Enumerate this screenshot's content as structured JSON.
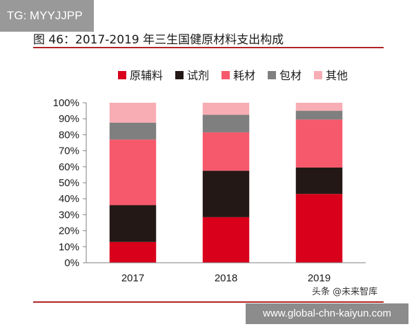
{
  "tag_badge": "TG: MYYJJPP",
  "url_banner": "www.global-chn-kaiyun.com",
  "watermark": "头条 @未来智库",
  "colors": {
    "rule": "#b22222",
    "badge": "#999999",
    "banner": "#8c8c8c"
  },
  "chart_data": {
    "type": "bar",
    "stacked": true,
    "title": "图 46：2017-2019 年三生国健原材料支出构成",
    "categories": [
      "2017",
      "2018",
      "2019"
    ],
    "ylim": [
      0,
      100
    ],
    "yticks": [
      "0%",
      "10%",
      "20%",
      "30%",
      "40%",
      "50%",
      "60%",
      "70%",
      "80%",
      "90%",
      "100%"
    ],
    "legend_position": "top",
    "series": [
      {
        "name": "原辅料",
        "color": "#d9001b",
        "values": [
          13,
          28.5,
          43
        ]
      },
      {
        "name": "试剂",
        "color": "#231815",
        "values": [
          23,
          29,
          16.5
        ]
      },
      {
        "name": "耗材",
        "color": "#f7596c",
        "values": [
          41,
          24,
          30
        ]
      },
      {
        "name": "包材",
        "color": "#7f7f7f",
        "values": [
          10.5,
          11,
          5.5
        ]
      },
      {
        "name": "其他",
        "color": "#f8adb4",
        "values": [
          12.5,
          7.5,
          5
        ]
      }
    ]
  }
}
